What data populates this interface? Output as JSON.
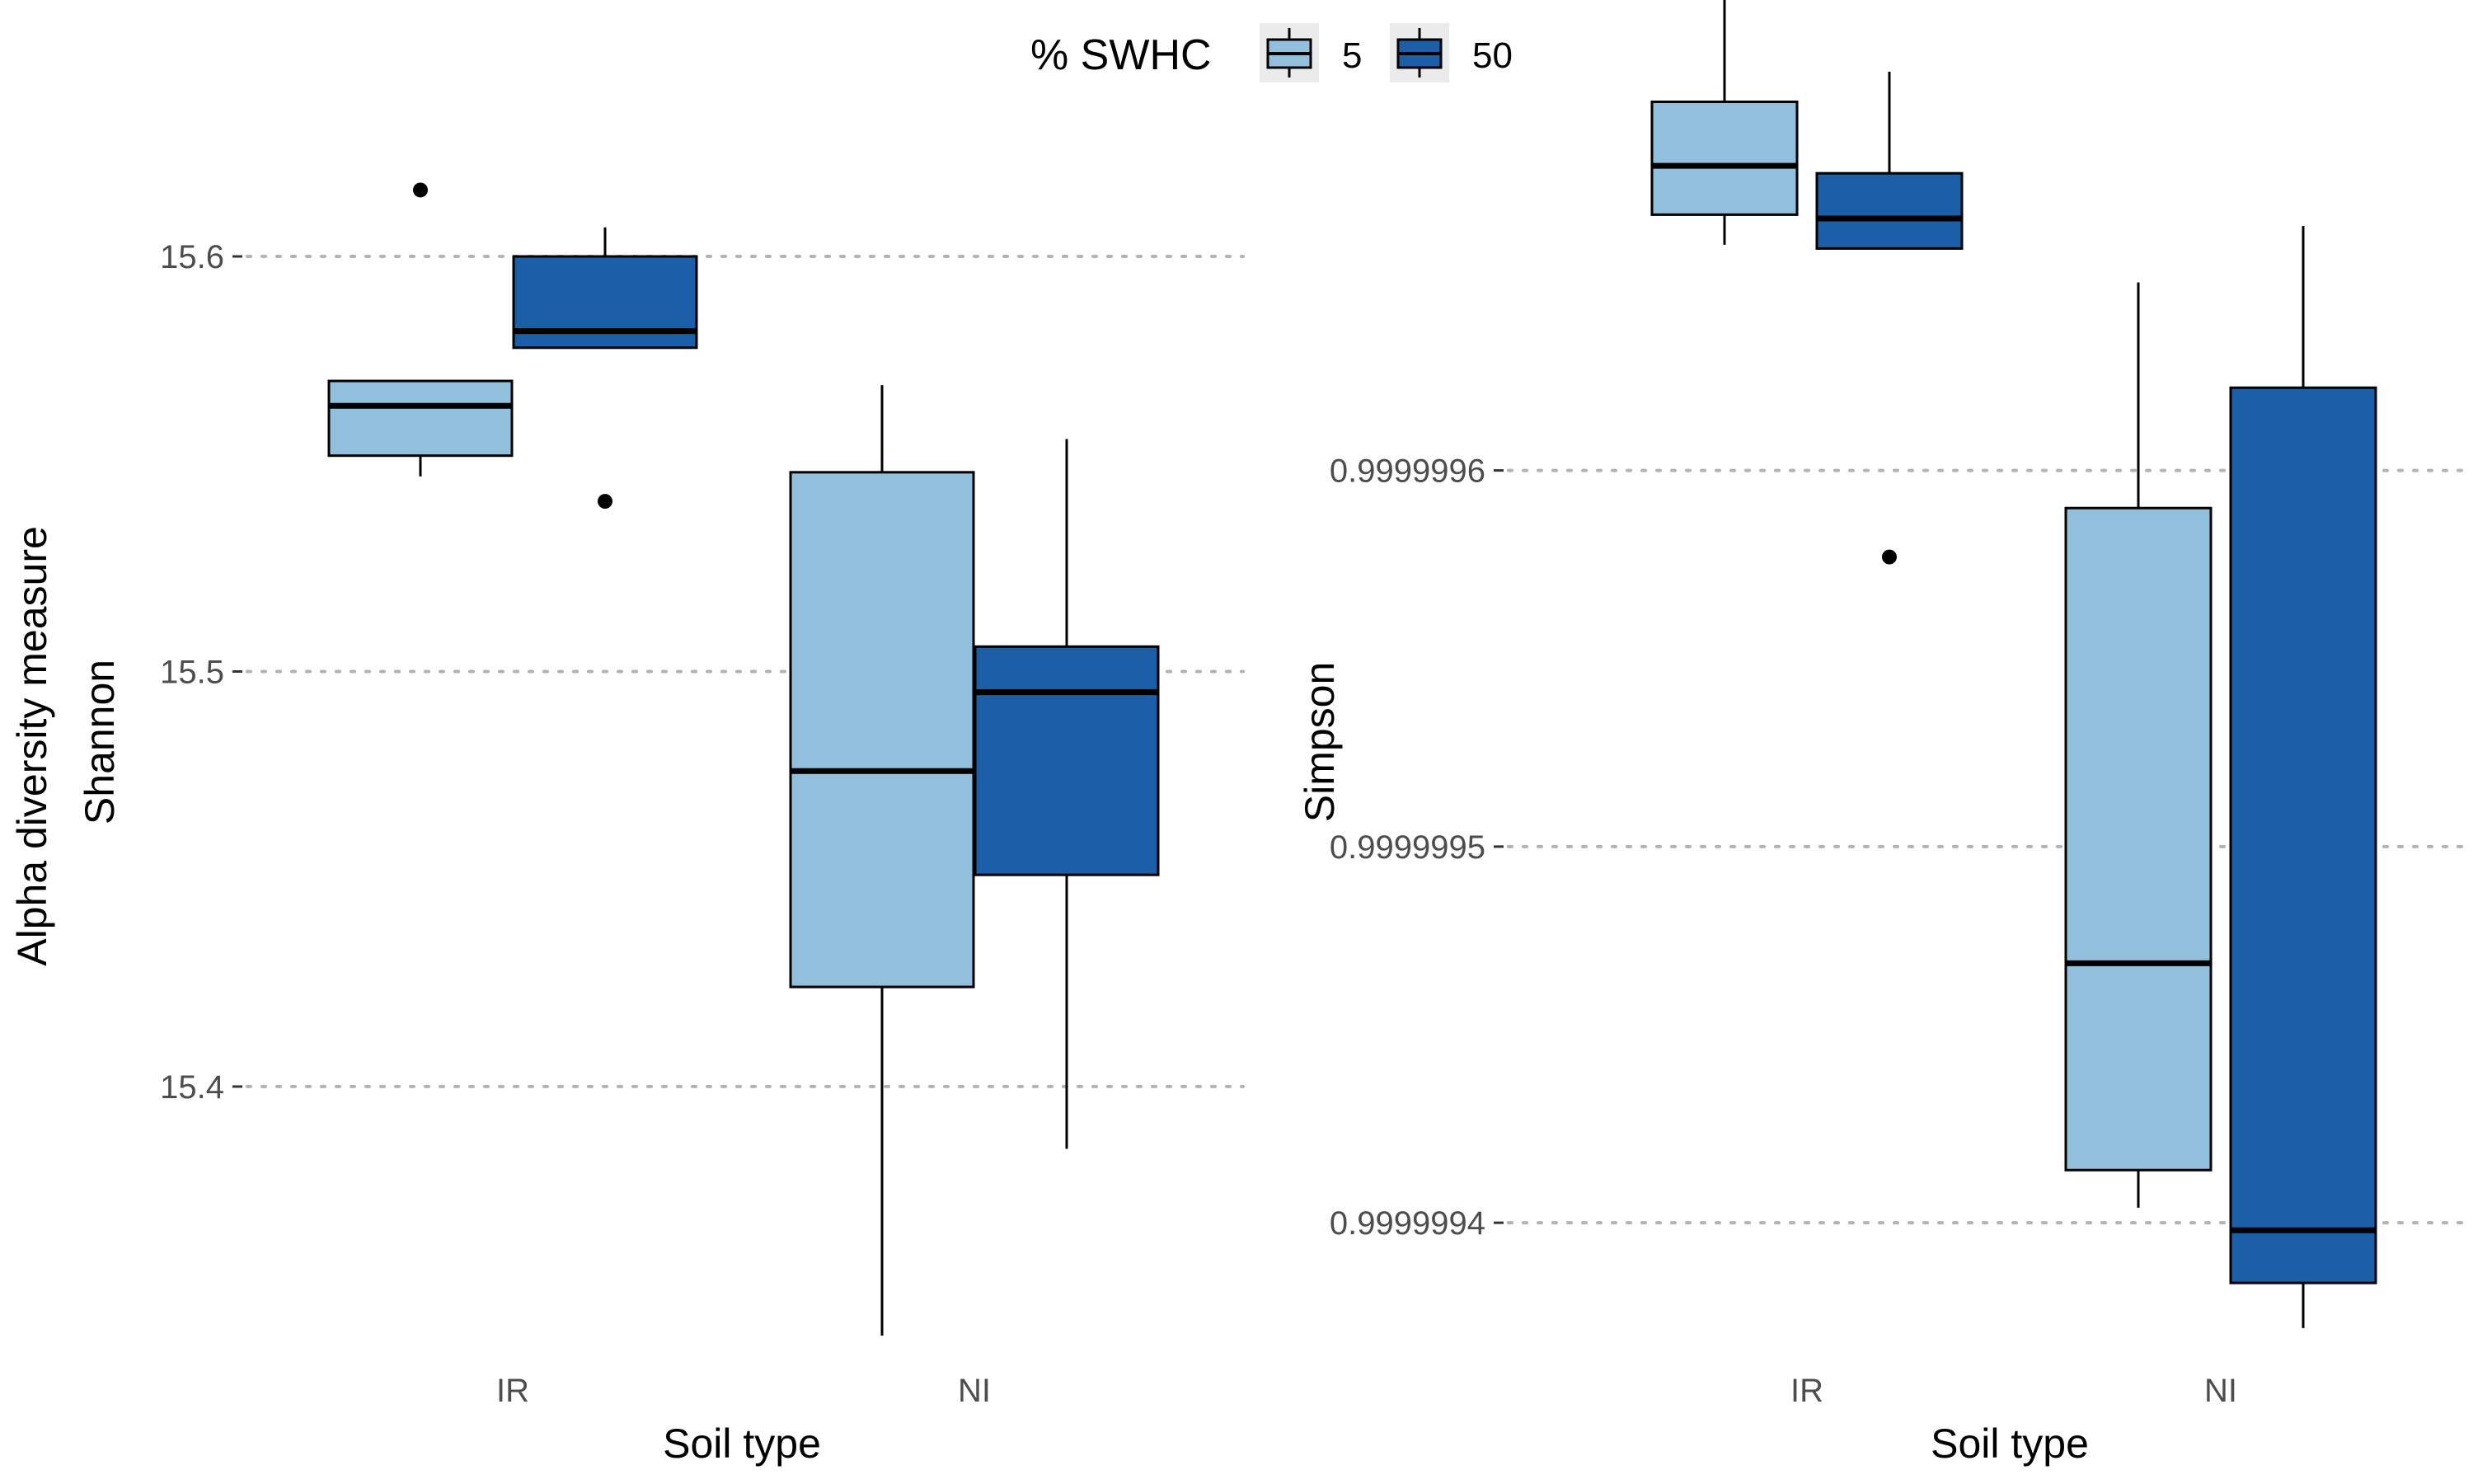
{
  "legend": {
    "title": "% SWHC",
    "items": [
      {
        "label": "5",
        "color": "#92bfdb"
      },
      {
        "label": "50",
        "color": "#1d5ea8"
      }
    ]
  },
  "y_axis_title": "Alpha diversity measure",
  "chart_data": [
    {
      "type": "box",
      "facet_label": "Shannon",
      "xlabel": "Soil type",
      "categories": [
        "IR",
        "NI"
      ],
      "y_ticks": [
        15.4,
        15.5,
        15.6
      ],
      "y_tick_labels": [
        "15.4",
        "15.5",
        "15.6"
      ],
      "ylim": [
        15.34,
        15.63
      ],
      "grid": "horizontal dotted",
      "series": [
        {
          "name": "5",
          "color": "#92bfdb",
          "boxes": [
            {
              "category": "IR",
              "whisker_low": 15.547,
              "q1": 15.552,
              "median": 15.564,
              "q3": 15.57,
              "whisker_high": 15.57,
              "outliers": [
                15.616
              ]
            },
            {
              "category": "NI",
              "whisker_low": 15.34,
              "q1": 15.424,
              "median": 15.476,
              "q3": 15.548,
              "whisker_high": 15.569,
              "outliers": []
            }
          ]
        },
        {
          "name": "50",
          "color": "#1d5ea8",
          "boxes": [
            {
              "category": "IR",
              "whisker_low": 15.578,
              "q1": 15.578,
              "median": 15.582,
              "q3": 15.6,
              "whisker_high": 15.607,
              "outliers": [
                15.541
              ]
            },
            {
              "category": "NI",
              "whisker_low": 15.385,
              "q1": 15.451,
              "median": 15.495,
              "q3": 15.506,
              "whisker_high": 15.556,
              "outliers": []
            }
          ]
        }
      ]
    },
    {
      "type": "box",
      "facet_label": "Simpson",
      "xlabel": "Soil type",
      "categories": [
        "IR",
        "NI"
      ],
      "y_ticks": [
        0.9999994,
        0.9999995,
        0.9999996
      ],
      "y_tick_labels": [
        "0.9999994",
        "0.9999995",
        "0.9999996"
      ],
      "ylim": [
        0.99999937,
        0.99999969
      ],
      "grid": "horizontal dotted",
      "series": [
        {
          "name": "5",
          "color": "#92bfdb",
          "boxes": [
            {
              "category": "IR",
              "whisker_low": 0.99999966,
              "q1": 0.999999668,
              "median": 0.999999681,
              "q3": 0.999999698,
              "whisker_high": 0.99999973,
              "outliers": []
            },
            {
              "category": "NI",
              "whisker_low": 0.999999404,
              "q1": 0.999999414,
              "median": 0.999999469,
              "q3": 0.99999959,
              "whisker_high": 0.99999965,
              "outliers": []
            }
          ]
        },
        {
          "name": "50",
          "color": "#1d5ea8",
          "boxes": [
            {
              "category": "IR",
              "whisker_low": 0.999999659,
              "q1": 0.999999659,
              "median": 0.999999667,
              "q3": 0.999999679,
              "whisker_high": 0.999999706,
              "outliers": [
                0.999999577
              ]
            },
            {
              "category": "NI",
              "whisker_low": 0.999999372,
              "q1": 0.999999384,
              "median": 0.999999398,
              "q3": 0.999999622,
              "whisker_high": 0.999999665,
              "outliers": []
            }
          ]
        }
      ]
    }
  ]
}
